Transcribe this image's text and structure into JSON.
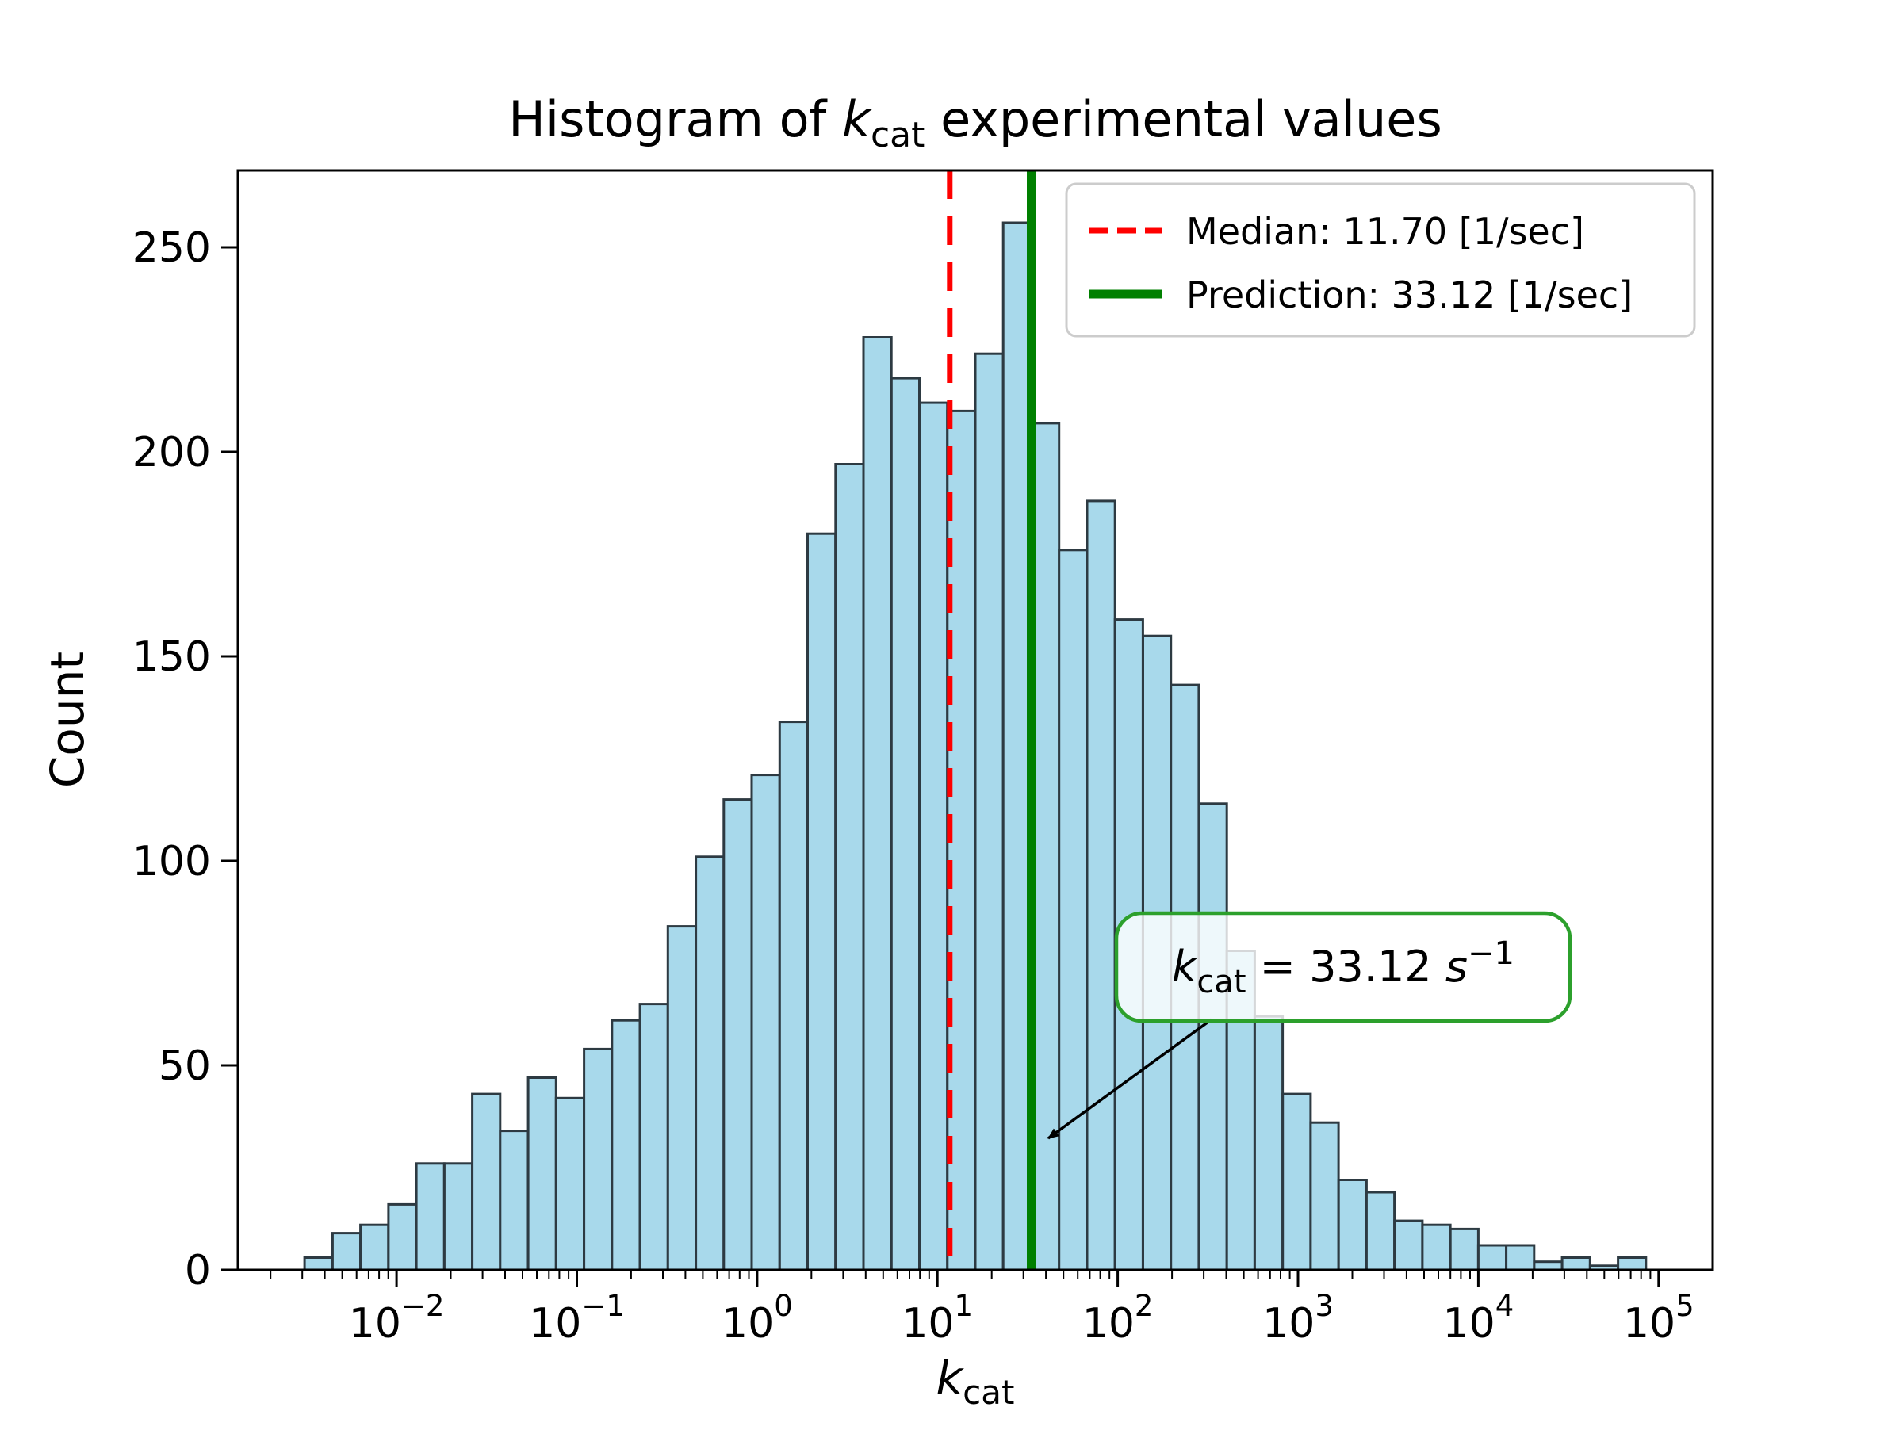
{
  "figure": {
    "title_parts": {
      "prefix": "Histogram of ",
      "k": "k",
      "k_sub": "cat",
      "suffix": " experimental values"
    },
    "xlabel_parts": {
      "k": "k",
      "k_sub": "cat"
    },
    "ylabel": "Count"
  },
  "legend": {
    "items": [
      {
        "label": "Median: 11.70 [1/sec]",
        "color": "#ff0000",
        "style": "dashed"
      },
      {
        "label": "Prediction: 33.12 [1/sec]",
        "color": "#008000",
        "style": "solid"
      }
    ]
  },
  "annotation": {
    "parts": {
      "k": "k",
      "k_sub": "cat",
      "mid": " = 33.12 ",
      "s": "s",
      "sup": "−1"
    },
    "border_color": "#2ca02c"
  },
  "chart_data": {
    "type": "histogram",
    "x_scale": "log10",
    "title": "Histogram of k_cat experimental values",
    "xlabel": "k_cat",
    "ylabel": "Count",
    "bin_log10_start": -2.51,
    "bin_log10_width": 0.155,
    "n_bins": 48,
    "counts": [
      3,
      9,
      11,
      16,
      26,
      26,
      43,
      34,
      47,
      42,
      54,
      61,
      65,
      84,
      101,
      115,
      121,
      134,
      180,
      197,
      228,
      218,
      212,
      210,
      224,
      256,
      207,
      176,
      188,
      159,
      155,
      143,
      114,
      78,
      62,
      43,
      36,
      22,
      19,
      12,
      11,
      10,
      6,
      6,
      2,
      3,
      1,
      3
    ],
    "median_value": 11.7,
    "prediction_value": 33.12,
    "xlim_log10": [
      -2.88,
      5.3
    ],
    "ylim": [
      0,
      268.8
    ],
    "yticks": [
      0,
      50,
      100,
      150,
      200,
      250
    ],
    "xtick_exponents": [
      -2,
      -1,
      0,
      1,
      2,
      3,
      4,
      5
    ],
    "grid": false,
    "legend_position": "upper right",
    "colors": {
      "bar_fill": "#a8d9eb",
      "bar_edge": "#2d3a42",
      "median": "#ff0000",
      "prediction": "#008000",
      "spine": "#000000"
    }
  }
}
